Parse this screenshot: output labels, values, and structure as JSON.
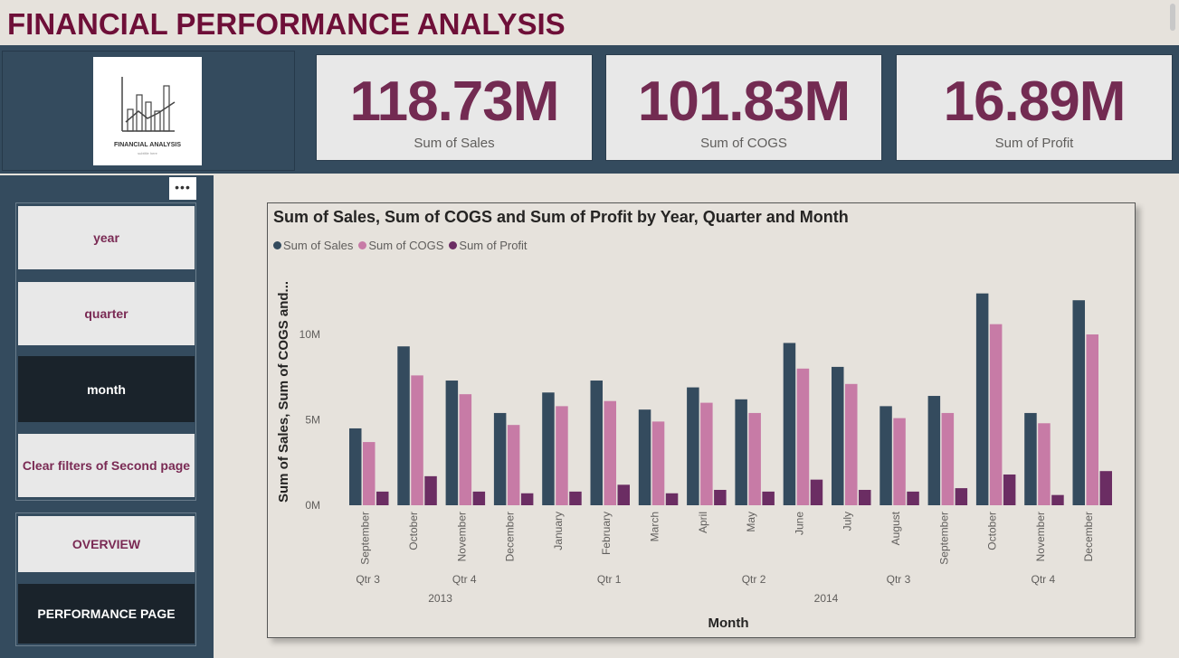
{
  "page": {
    "title": "FINANCIAL PERFORMANCE ANALYSIS"
  },
  "logo": {
    "title": "FINANCIAL ANALYSIS",
    "subtitle": "subtitle here"
  },
  "kpis": [
    {
      "value": "118.73M",
      "label": "Sum of  Sales"
    },
    {
      "value": "101.83M",
      "label": "Sum of COGS"
    },
    {
      "value": "16.89M",
      "label": "Sum of Profit"
    }
  ],
  "more_options": "•••",
  "nav": {
    "year": "year",
    "quarter": "quarter",
    "month": "month",
    "clear": "Clear filters of Second page",
    "overview": "OVERVIEW",
    "performance": "PERFORMANCE PAGE"
  },
  "colors": {
    "sales": "#344b5e",
    "cogs": "#c77ba6",
    "profit": "#6b2d63",
    "accent": "#6e0f38"
  },
  "chart_data": {
    "type": "bar",
    "title": "Sum of Sales, Sum of COGS and Sum of Profit by Year, Quarter and Month",
    "xlabel": "Month",
    "ylabel": "Sum of Sales, Sum of COGS and...",
    "ylim": [
      0,
      13
    ],
    "y_ticks": [
      {
        "value": 0,
        "label": "0M"
      },
      {
        "value": 5,
        "label": "5M"
      },
      {
        "value": 10,
        "label": "10M"
      }
    ],
    "categories": [
      "September",
      "October",
      "November",
      "December",
      "January",
      "February",
      "March",
      "April",
      "May",
      "June",
      "July",
      "August",
      "September",
      "October",
      "November",
      "December"
    ],
    "quarters": [
      {
        "label": "Qtr 3",
        "span": [
          0,
          0
        ]
      },
      {
        "label": "Qtr 4",
        "span": [
          1,
          3
        ]
      },
      {
        "label": "Qtr 1",
        "span": [
          4,
          6
        ]
      },
      {
        "label": "Qtr 2",
        "span": [
          7,
          9
        ]
      },
      {
        "label": "Qtr 3",
        "span": [
          10,
          12
        ]
      },
      {
        "label": "Qtr 4",
        "span": [
          13,
          15
        ]
      }
    ],
    "years": [
      {
        "label": "2013",
        "span": [
          0,
          3
        ]
      },
      {
        "label": "2014",
        "span": [
          4,
          15
        ]
      }
    ],
    "series": [
      {
        "name": "Sum of  Sales",
        "values": [
          4.5,
          9.3,
          7.3,
          5.4,
          6.6,
          7.3,
          5.6,
          6.9,
          6.2,
          9.5,
          8.1,
          5.8,
          6.4,
          12.4,
          5.4,
          12.0
        ]
      },
      {
        "name": "Sum of COGS",
        "values": [
          3.7,
          7.6,
          6.5,
          4.7,
          5.8,
          6.1,
          4.9,
          6.0,
          5.4,
          8.0,
          7.1,
          5.1,
          5.4,
          10.6,
          4.8,
          10.0
        ]
      },
      {
        "name": "Sum of Profit",
        "values": [
          0.8,
          1.7,
          0.8,
          0.7,
          0.8,
          1.2,
          0.7,
          0.9,
          0.8,
          1.5,
          0.9,
          0.8,
          1.0,
          1.8,
          0.6,
          2.0
        ]
      }
    ],
    "legend": "top-left",
    "grid": false
  }
}
